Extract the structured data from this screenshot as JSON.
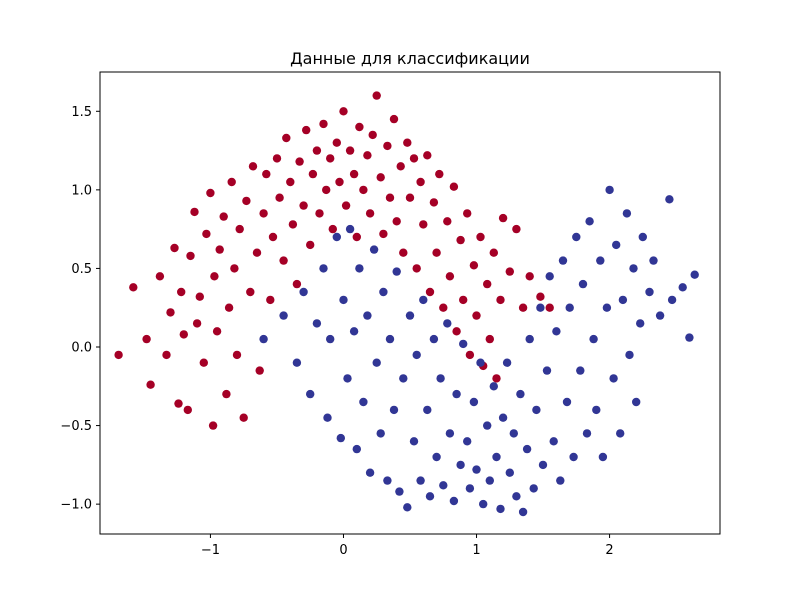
{
  "chart_data": {
    "type": "scatter",
    "title": "Данные для классификации",
    "xlabel": "",
    "ylabel": "",
    "xlim": [
      -1.83,
      2.83
    ],
    "ylim": [
      -1.19,
      1.75
    ],
    "x_ticks": [
      -1,
      0,
      1,
      2
    ],
    "x_tick_labels": [
      "−1",
      "0",
      "1",
      "2"
    ],
    "y_ticks": [
      -1.0,
      -0.5,
      0.0,
      0.5,
      1.0,
      1.5
    ],
    "y_tick_labels": [
      "−1.0",
      "−0.5",
      "0.0",
      "0.5",
      "1.0",
      "1.5"
    ],
    "grid": false,
    "legend": "none",
    "series": [
      {
        "color": "#a50026",
        "description_shape": "upper half-moon centered near (0, 0.5)",
        "points": [
          [
            -1.69,
            -0.05
          ],
          [
            -1.58,
            0.38
          ],
          [
            -1.48,
            0.05
          ],
          [
            -1.45,
            -0.24
          ],
          [
            -1.38,
            0.45
          ],
          [
            -1.33,
            -0.05
          ],
          [
            -1.3,
            0.22
          ],
          [
            -1.27,
            0.63
          ],
          [
            -1.24,
            -0.36
          ],
          [
            -1.22,
            0.35
          ],
          [
            -1.2,
            0.08
          ],
          [
            -1.17,
            -0.4
          ],
          [
            -1.15,
            0.58
          ],
          [
            -1.12,
            0.86
          ],
          [
            -1.1,
            0.15
          ],
          [
            -1.08,
            0.32
          ],
          [
            -1.05,
            -0.1
          ],
          [
            -1.03,
            0.72
          ],
          [
            -1.0,
            0.98
          ],
          [
            -0.98,
            -0.5
          ],
          [
            -0.97,
            0.45
          ],
          [
            -0.95,
            0.1
          ],
          [
            -0.93,
            0.62
          ],
          [
            -0.9,
            0.83
          ],
          [
            -0.88,
            -0.3
          ],
          [
            -0.86,
            0.25
          ],
          [
            -0.84,
            1.05
          ],
          [
            -0.82,
            0.5
          ],
          [
            -0.8,
            -0.05
          ],
          [
            -0.78,
            0.75
          ],
          [
            -0.75,
            -0.45
          ],
          [
            -0.73,
            0.93
          ],
          [
            -0.7,
            0.35
          ],
          [
            -0.68,
            1.15
          ],
          [
            -0.65,
            0.6
          ],
          [
            -0.63,
            -0.15
          ],
          [
            -0.6,
            0.85
          ],
          [
            -0.58,
            1.1
          ],
          [
            -0.55,
            0.3
          ],
          [
            -0.53,
            0.7
          ],
          [
            -0.5,
            1.2
          ],
          [
            -0.48,
            0.95
          ],
          [
            -0.45,
            0.55
          ],
          [
            -0.43,
            1.33
          ],
          [
            -0.4,
            1.05
          ],
          [
            -0.38,
            0.78
          ],
          [
            -0.35,
            0.4
          ],
          [
            -0.33,
            1.18
          ],
          [
            -0.3,
            0.9
          ],
          [
            -0.28,
            1.38
          ],
          [
            -0.25,
            0.65
          ],
          [
            -0.23,
            1.1
          ],
          [
            -0.2,
            1.25
          ],
          [
            -0.18,
            0.85
          ],
          [
            -0.15,
            1.42
          ],
          [
            -0.13,
            1.0
          ],
          [
            -0.1,
            1.2
          ],
          [
            -0.08,
            0.75
          ],
          [
            -0.05,
            1.3
          ],
          [
            -0.03,
            1.05
          ],
          [
            0.0,
            1.5
          ],
          [
            0.02,
            0.9
          ],
          [
            0.05,
            1.25
          ],
          [
            0.08,
            1.1
          ],
          [
            0.1,
            0.7
          ],
          [
            0.12,
            1.4
          ],
          [
            0.15,
            1.0
          ],
          [
            0.18,
            1.22
          ],
          [
            0.2,
            0.85
          ],
          [
            0.22,
            1.35
          ],
          [
            0.25,
            1.6
          ],
          [
            0.28,
            1.08
          ],
          [
            0.3,
            0.72
          ],
          [
            0.33,
            1.28
          ],
          [
            0.35,
            0.95
          ],
          [
            0.38,
            1.45
          ],
          [
            0.4,
            0.8
          ],
          [
            0.43,
            1.15
          ],
          [
            0.45,
            0.6
          ],
          [
            0.48,
            1.3
          ],
          [
            0.5,
            0.95
          ],
          [
            0.53,
            1.2
          ],
          [
            0.55,
            0.5
          ],
          [
            0.58,
            1.05
          ],
          [
            0.6,
            0.78
          ],
          [
            0.63,
            1.22
          ],
          [
            0.65,
            0.35
          ],
          [
            0.68,
            0.92
          ],
          [
            0.7,
            0.6
          ],
          [
            0.72,
            1.1
          ],
          [
            0.75,
            0.25
          ],
          [
            0.78,
            0.8
          ],
          [
            0.8,
            0.45
          ],
          [
            0.83,
            1.02
          ],
          [
            0.85,
            0.1
          ],
          [
            0.88,
            0.68
          ],
          [
            0.9,
            0.3
          ],
          [
            0.93,
            0.85
          ],
          [
            0.95,
            -0.05
          ],
          [
            0.98,
            0.52
          ],
          [
            1.0,
            0.2
          ],
          [
            1.03,
            0.7
          ],
          [
            1.05,
            -0.12
          ],
          [
            1.08,
            0.4
          ],
          [
            1.1,
            0.05
          ],
          [
            1.13,
            0.6
          ],
          [
            1.15,
            -0.2
          ],
          [
            1.18,
            0.3
          ],
          [
            1.2,
            0.82
          ],
          [
            1.25,
            0.48
          ],
          [
            1.3,
            0.75
          ],
          [
            1.35,
            0.25
          ],
          [
            1.4,
            0.45
          ],
          [
            1.48,
            0.32
          ],
          [
            1.55,
            0.25
          ]
        ]
      },
      {
        "color": "#313695",
        "description_shape": "lower half-moon centered near (1, 0)",
        "points": [
          [
            -0.6,
            0.05
          ],
          [
            -0.45,
            0.2
          ],
          [
            -0.35,
            -0.1
          ],
          [
            -0.3,
            0.35
          ],
          [
            -0.25,
            -0.3
          ],
          [
            -0.2,
            0.15
          ],
          [
            -0.15,
            0.5
          ],
          [
            -0.12,
            -0.45
          ],
          [
            -0.1,
            0.05
          ],
          [
            -0.05,
            0.7
          ],
          [
            -0.02,
            -0.58
          ],
          [
            0.0,
            0.3
          ],
          [
            0.03,
            -0.2
          ],
          [
            0.05,
            0.75
          ],
          [
            0.08,
            0.1
          ],
          [
            0.1,
            -0.65
          ],
          [
            0.12,
            0.5
          ],
          [
            0.15,
            -0.35
          ],
          [
            0.18,
            0.2
          ],
          [
            0.2,
            -0.8
          ],
          [
            0.23,
            0.62
          ],
          [
            0.25,
            -0.1
          ],
          [
            0.28,
            -0.55
          ],
          [
            0.3,
            0.35
          ],
          [
            0.33,
            -0.85
          ],
          [
            0.35,
            0.05
          ],
          [
            0.38,
            -0.4
          ],
          [
            0.4,
            0.48
          ],
          [
            0.42,
            -0.92
          ],
          [
            0.45,
            -0.2
          ],
          [
            0.48,
            -1.02
          ],
          [
            0.5,
            0.2
          ],
          [
            0.53,
            -0.6
          ],
          [
            0.55,
            -0.05
          ],
          [
            0.58,
            -0.85
          ],
          [
            0.6,
            0.3
          ],
          [
            0.63,
            -0.4
          ],
          [
            0.65,
            -0.95
          ],
          [
            0.68,
            0.05
          ],
          [
            0.7,
            -0.7
          ],
          [
            0.73,
            -0.2
          ],
          [
            0.75,
            -0.88
          ],
          [
            0.78,
            0.15
          ],
          [
            0.8,
            -0.55
          ],
          [
            0.83,
            -0.98
          ],
          [
            0.85,
            -0.3
          ],
          [
            0.88,
            -0.75
          ],
          [
            0.9,
            0.02
          ],
          [
            0.93,
            -0.6
          ],
          [
            0.95,
            -0.9
          ],
          [
            0.98,
            -0.35
          ],
          [
            1.0,
            -0.78
          ],
          [
            1.03,
            -0.1
          ],
          [
            1.05,
            -1.0
          ],
          [
            1.08,
            -0.5
          ],
          [
            1.1,
            -0.85
          ],
          [
            1.13,
            -0.25
          ],
          [
            1.15,
            -0.7
          ],
          [
            1.18,
            -1.03
          ],
          [
            1.2,
            -0.45
          ],
          [
            1.23,
            -0.1
          ],
          [
            1.25,
            -0.8
          ],
          [
            1.28,
            -0.55
          ],
          [
            1.3,
            -0.95
          ],
          [
            1.33,
            -0.3
          ],
          [
            1.35,
            -1.05
          ],
          [
            1.38,
            -0.65
          ],
          [
            1.4,
            0.05
          ],
          [
            1.43,
            -0.9
          ],
          [
            1.45,
            -0.4
          ],
          [
            1.48,
            0.25
          ],
          [
            1.5,
            -0.75
          ],
          [
            1.53,
            -0.15
          ],
          [
            1.55,
            0.45
          ],
          [
            1.58,
            -0.6
          ],
          [
            1.6,
            0.1
          ],
          [
            1.63,
            -0.85
          ],
          [
            1.65,
            0.55
          ],
          [
            1.68,
            -0.35
          ],
          [
            1.7,
            0.25
          ],
          [
            1.73,
            -0.7
          ],
          [
            1.75,
            0.7
          ],
          [
            1.78,
            -0.15
          ],
          [
            1.8,
            0.4
          ],
          [
            1.83,
            -0.55
          ],
          [
            1.85,
            0.8
          ],
          [
            1.88,
            0.05
          ],
          [
            1.9,
            -0.4
          ],
          [
            1.93,
            0.55
          ],
          [
            1.95,
            -0.7
          ],
          [
            1.98,
            0.25
          ],
          [
            2.0,
            1.0
          ],
          [
            2.03,
            -0.2
          ],
          [
            2.05,
            0.65
          ],
          [
            2.08,
            -0.55
          ],
          [
            2.1,
            0.3
          ],
          [
            2.13,
            0.85
          ],
          [
            2.15,
            -0.05
          ],
          [
            2.18,
            0.5
          ],
          [
            2.2,
            -0.35
          ],
          [
            2.23,
            0.15
          ],
          [
            2.25,
            0.7
          ],
          [
            2.3,
            0.35
          ],
          [
            2.33,
            0.55
          ],
          [
            2.38,
            0.2
          ],
          [
            2.45,
            0.94
          ],
          [
            2.47,
            0.3
          ],
          [
            2.55,
            0.38
          ],
          [
            2.64,
            0.46
          ],
          [
            2.6,
            0.06
          ]
        ]
      }
    ]
  }
}
